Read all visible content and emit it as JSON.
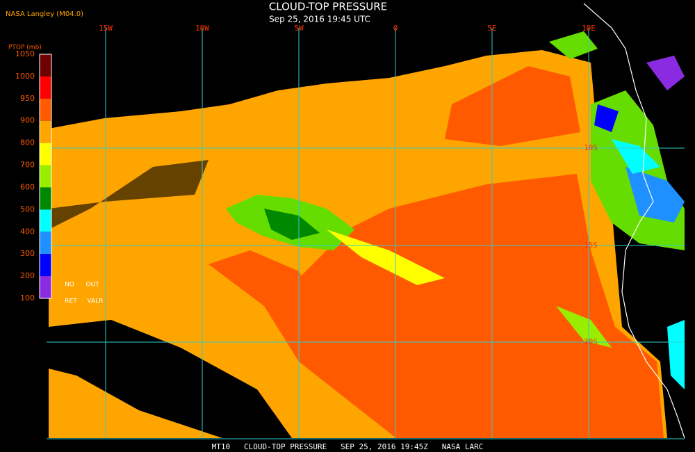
{
  "header": {
    "source": "NASA Langley (M04.0)",
    "title": "CLOUD-TOP PRESSURE",
    "datetime": "Sep 25, 2016 19:45 UTC"
  },
  "colorbar": {
    "title": "PTOP (mb)",
    "ticks": [
      1050,
      1000,
      950,
      900,
      800,
      700,
      600,
      500,
      400,
      300,
      200,
      100
    ],
    "colors": [
      "#6e0000",
      "#ff0000",
      "#ff5a00",
      "#ffa500",
      "#ffff00",
      "#99ee00",
      "#008800",
      "#00ffff",
      "#1e90ff",
      "#0000ff",
      "#8a2be2"
    ],
    "notes": [
      "NO",
      "OUT",
      "RET",
      "VALR"
    ]
  },
  "longitudes": [
    "15W",
    "10W",
    "5W",
    "0",
    "5E",
    "10E"
  ],
  "latitudes": [
    "10S",
    "15S",
    "20S"
  ],
  "footer": "MT10   CLOUD-TOP PRESSURE   SEP 25, 2016 19:45Z   NASA LARC"
}
